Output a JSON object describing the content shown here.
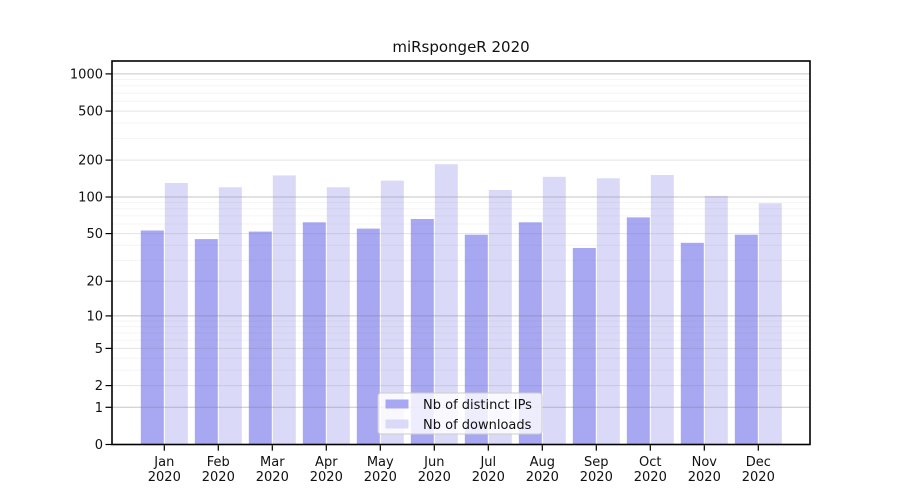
{
  "chart_data": {
    "type": "bar",
    "title": "miRspongeR 2020",
    "year_label": "2020",
    "categories": [
      "Jan",
      "Feb",
      "Mar",
      "Apr",
      "May",
      "Jun",
      "Jul",
      "Aug",
      "Sep",
      "Oct",
      "Nov",
      "Dec"
    ],
    "series": [
      {
        "name": "Nb of distinct IPs",
        "color": "#a7a7f2",
        "values": [
          53,
          45,
          52,
          62,
          55,
          66,
          49,
          62,
          38,
          68,
          42,
          49
        ]
      },
      {
        "name": "Nb of downloads",
        "color": "#dadaf8",
        "values": [
          130,
          120,
          150,
          120,
          136,
          185,
          114,
          146,
          142,
          151,
          102,
          89
        ]
      }
    ],
    "xlabel": "",
    "ylabel": "",
    "y_scale": "log1p",
    "y_ticks": [
      0,
      1,
      2,
      5,
      10,
      20,
      50,
      100,
      200,
      500,
      1000
    ],
    "ylim": [
      0,
      1270
    ],
    "grid": true,
    "legend_position": "lower-center-inside"
  }
}
